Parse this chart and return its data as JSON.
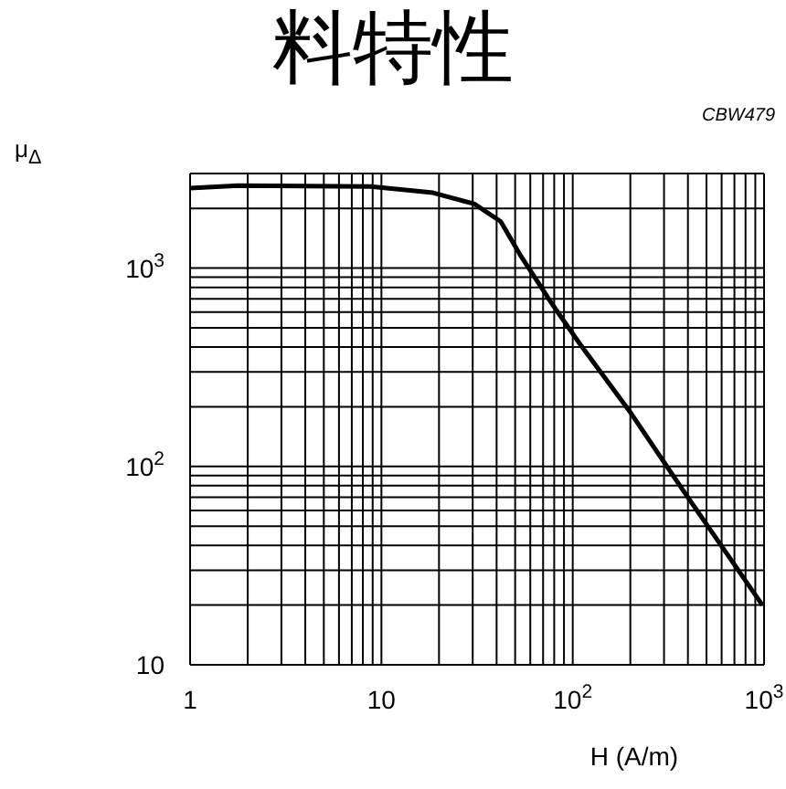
{
  "chart_data": {
    "type": "line",
    "title": "料特性",
    "xlabel": "H  (A/m)",
    "ylabel": "μ$_{Δ}$",
    "annotations": [
      "CBW479"
    ],
    "log": "xy",
    "grid": true,
    "xlim": [
      1,
      1000
    ],
    "ylim": [
      10,
      3000
    ],
    "xticks": [
      1,
      {
        "value": 2,
        "label": null
      },
      {
        "value": 3,
        "label": null
      },
      {
        "value": 4,
        "label": null
      },
      {
        "value": 5,
        "label": null
      },
      {
        "value": 6,
        "label": null
      },
      {
        "value": 7,
        "label": null
      },
      {
        "value": 8,
        "label": null
      },
      {
        "value": 9,
        "label": null
      },
      10,
      {
        "value": 20,
        "label": null
      },
      {
        "value": 30,
        "label": null
      },
      {
        "value": 40,
        "label": null
      },
      {
        "value": 50,
        "label": null
      },
      {
        "value": 60,
        "label": null
      },
      {
        "value": 70,
        "label": null
      },
      {
        "value": 80,
        "label": null
      },
      {
        "value": 90,
        "label": null
      },
      {
        "value": 100,
        "label": "10$^{2}$"
      },
      {
        "value": 200,
        "label": null
      },
      {
        "value": 300,
        "label": null
      },
      {
        "value": 400,
        "label": null
      },
      {
        "value": 500,
        "label": null
      },
      {
        "value": 600,
        "label": null
      },
      {
        "value": 700,
        "label": null
      },
      {
        "value": 800,
        "label": null
      },
      {
        "value": 900,
        "label": null
      },
      {
        "value": 1000,
        "label": "10$^{3}$"
      }
    ],
    "yticks": [
      10,
      {
        "value": 20,
        "label": null
      },
      {
        "value": 30,
        "label": null
      },
      {
        "value": 40,
        "label": null
      },
      {
        "value": 50,
        "label": null
      },
      {
        "value": 60,
        "label": null
      },
      {
        "value": 70,
        "label": null
      },
      {
        "value": 80,
        "label": null
      },
      {
        "value": 90,
        "label": null
      },
      {
        "value": 100,
        "label": "10$^{2}$"
      },
      {
        "value": 200,
        "label": null
      },
      {
        "value": 300,
        "label": null
      },
      {
        "value": 400,
        "label": null
      },
      {
        "value": 500,
        "label": null
      },
      {
        "value": 600,
        "label": null
      },
      {
        "value": 700,
        "label": null
      },
      {
        "value": 800,
        "label": null
      },
      {
        "value": 900,
        "label": null
      },
      {
        "value": 1000,
        "label": "10$^{3}$"
      },
      {
        "value": 2000,
        "label": null
      },
      {
        "value": 3000,
        "label": null
      }
    ],
    "series": [
      {
        "color": "#000000",
        "x": [
          1,
          1.8,
          8.8,
          18.6,
          30.5,
          42,
          53,
          78,
          108,
          202,
          380,
          980
        ],
        "values": [
          2530,
          2610,
          2580,
          2400,
          2110,
          1720,
          1170,
          660,
          420,
          185,
          75,
          20
        ]
      }
    ]
  }
}
